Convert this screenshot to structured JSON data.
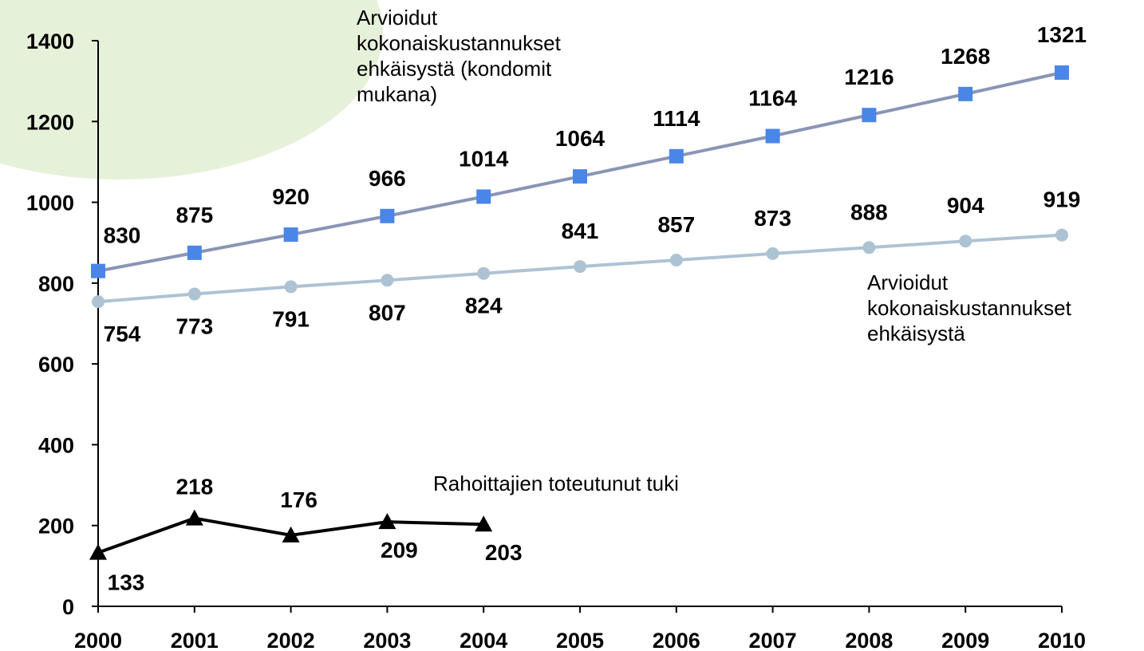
{
  "chart_data": {
    "type": "line",
    "x": [
      2000,
      2001,
      2002,
      2003,
      2004,
      2005,
      2006,
      2007,
      2008,
      2009,
      2010
    ],
    "xlim": [
      2000,
      2010
    ],
    "xticks": [
      2000,
      2001,
      2002,
      2003,
      2004,
      2005,
      2006,
      2007,
      2008,
      2009,
      2010
    ],
    "ylim": [
      0,
      1400
    ],
    "yticks": [
      0,
      200,
      400,
      600,
      800,
      1000,
      1200,
      1400
    ],
    "series": [
      {
        "name": "Arvioidut kokonaiskustannukset ehkäisystä (kondomit mukana)",
        "color": "#4a86e8",
        "line_color": "#8a95b5",
        "marker": "square",
        "values": [
          830,
          875,
          920,
          966,
          1014,
          1064,
          1114,
          1164,
          1216,
          1268,
          1321
        ]
      },
      {
        "name": "Arvioidut kokonaiskustannukset ehkäisystä",
        "color": "#adc3d3",
        "line_color": "#adc3d3",
        "marker": "circle",
        "values": [
          754,
          773,
          791,
          807,
          824,
          841,
          857,
          873,
          888,
          904,
          919
        ]
      },
      {
        "name": "Rahoittajien toteutunut tuki",
        "color": "#000000",
        "line_color": "#000000",
        "marker": "triangle",
        "values": [
          133,
          218,
          176,
          209,
          203,
          null,
          null,
          null,
          null,
          null,
          null
        ]
      }
    ]
  }
}
